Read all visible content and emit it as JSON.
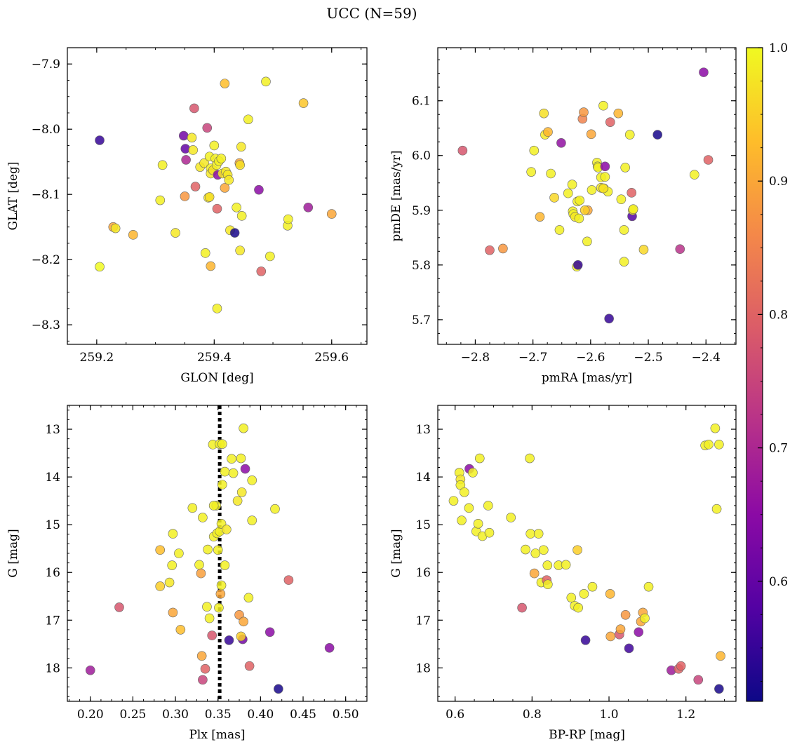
{
  "figure": {
    "title": "UCC (N=59)"
  },
  "colorbar": {
    "vmin": 0.51,
    "vmax": 1.0,
    "ticks": [
      0.6,
      0.7,
      0.8,
      0.9,
      1.0
    ],
    "tick_labels": [
      "0.6",
      "0.7",
      "0.8",
      "0.9",
      "1.0"
    ],
    "colormap": "plasma",
    "stops": [
      "#0d0887",
      "#5302a3",
      "#8b0aa5",
      "#b83289",
      "#db5c68",
      "#f48849",
      "#febd2a",
      "#f0f921"
    ]
  },
  "chart_data": [
    {
      "type": "scatter",
      "name": "sky",
      "xlabel": "GLON [deg]",
      "ylabel": "GLAT [deg]",
      "xlim": [
        259.15,
        259.66
      ],
      "ylim": [
        -8.33,
        -7.875
      ],
      "xticks": [
        259.2,
        259.4,
        259.6
      ],
      "xtick_labels": [
        "259.2",
        "259.4",
        "259.6"
      ],
      "yticks": [
        -7.9,
        -8.0,
        -8.1,
        -8.2,
        -8.3
      ],
      "ytick_labels": [
        "−7.9",
        "−8.0",
        "−8.1",
        "−8.2",
        "−8.3"
      ],
      "points": [
        [
          259.205,
          -8.017,
          0.55
        ],
        [
          259.205,
          -8.211,
          1.0
        ],
        [
          259.228,
          -8.15,
          0.9
        ],
        [
          259.232,
          -8.152,
          0.98
        ],
        [
          259.262,
          -8.162,
          0.92
        ],
        [
          259.308,
          -8.109,
          0.99
        ],
        [
          259.312,
          -8.055,
          0.99
        ],
        [
          259.334,
          -8.159,
          0.98
        ],
        [
          259.348,
          -8.01,
          0.62
        ],
        [
          259.35,
          -8.103,
          0.88
        ],
        [
          259.351,
          -8.03,
          0.6
        ],
        [
          259.352,
          -8.047,
          0.7
        ],
        [
          259.362,
          -8.013,
          0.98
        ],
        [
          259.364,
          -8.032,
          0.98
        ],
        [
          259.366,
          -7.968,
          0.78
        ],
        [
          259.368,
          -8.088,
          0.8
        ],
        [
          259.376,
          -8.058,
          0.98
        ],
        [
          259.383,
          -8.052,
          0.98
        ],
        [
          259.385,
          -8.19,
          0.99
        ],
        [
          259.388,
          -7.998,
          0.75
        ],
        [
          259.39,
          -8.105,
          0.98
        ],
        [
          259.392,
          -8.104,
          0.97
        ],
        [
          259.392,
          -8.042,
          0.99
        ],
        [
          259.394,
          -8.06,
          0.99
        ],
        [
          259.394,
          -8.068,
          0.98
        ],
        [
          259.394,
          -8.21,
          0.92
        ],
        [
          259.398,
          -8.063,
          0.97
        ],
        [
          259.4,
          -8.025,
          0.99
        ],
        [
          259.402,
          -8.045,
          0.99
        ],
        [
          259.404,
          -8.055,
          0.99
        ],
        [
          259.405,
          -8.275,
          0.99
        ],
        [
          259.405,
          -8.122,
          0.8
        ],
        [
          259.406,
          -8.07,
          0.65
        ],
        [
          259.408,
          -8.049,
          0.99
        ],
        [
          259.412,
          -8.045,
          0.99
        ],
        [
          259.414,
          -8.068,
          0.98
        ],
        [
          259.418,
          -7.93,
          0.93
        ],
        [
          259.418,
          -8.09,
          0.9
        ],
        [
          259.42,
          -8.065,
          0.98
        ],
        [
          259.423,
          -8.07,
          0.98
        ],
        [
          259.425,
          -8.078,
          0.98
        ],
        [
          259.427,
          -8.155,
          0.98
        ],
        [
          259.435,
          -8.159,
          0.52
        ],
        [
          259.438,
          -8.12,
          0.99
        ],
        [
          259.443,
          -8.052,
          0.9
        ],
        [
          259.444,
          -8.186,
          0.98
        ],
        [
          259.446,
          -8.027,
          0.98
        ],
        [
          259.447,
          -8.133,
          0.99
        ],
        [
          259.458,
          -7.985,
          0.99
        ],
        [
          259.476,
          -8.093,
          0.65
        ],
        [
          259.48,
          -8.218,
          0.8
        ],
        [
          259.488,
          -7.927,
          0.99
        ],
        [
          259.495,
          -8.195,
          0.99
        ],
        [
          259.525,
          -8.148,
          0.99
        ],
        [
          259.526,
          -8.138,
          0.99
        ],
        [
          259.552,
          -7.96,
          0.94
        ],
        [
          259.56,
          -8.12,
          0.68
        ],
        [
          259.6,
          -8.13,
          0.9
        ],
        [
          259.444,
          -8.055,
          0.97
        ]
      ]
    },
    {
      "type": "scatter",
      "name": "proper-motion",
      "xlabel": "pmRA [mas/yr]",
      "ylabel": "pmDE [mas/yr]",
      "xlim": [
        -2.865,
        -2.348
      ],
      "ylim": [
        5.655,
        6.197
      ],
      "xticks": [
        -2.8,
        -2.7,
        -2.6,
        -2.5,
        -2.4
      ],
      "xtick_labels": [
        "−2.8",
        "−2.7",
        "−2.6",
        "−2.5",
        "−2.4"
      ],
      "yticks": [
        5.7,
        5.8,
        5.9,
        6.0,
        6.1
      ],
      "ytick_labels": [
        "5.7",
        "5.8",
        "5.9",
        "6.0",
        "6.1"
      ],
      "points": [
        [
          -2.822,
          6.009,
          0.78
        ],
        [
          -2.775,
          5.827,
          0.8
        ],
        [
          -2.752,
          5.83,
          0.88
        ],
        [
          -2.703,
          5.97,
          0.99
        ],
        [
          -2.698,
          6.009,
          0.99
        ],
        [
          -2.688,
          5.888,
          0.92
        ],
        [
          -2.681,
          6.077,
          0.97
        ],
        [
          -2.679,
          6.038,
          0.98
        ],
        [
          -2.674,
          6.043,
          0.92
        ],
        [
          -2.669,
          5.967,
          0.99
        ],
        [
          -2.663,
          5.923,
          0.96
        ],
        [
          -2.654,
          5.864,
          0.99
        ],
        [
          -2.651,
          6.023,
          0.66
        ],
        [
          -2.639,
          5.931,
          0.99
        ],
        [
          -2.632,
          5.947,
          0.99
        ],
        [
          -2.631,
          5.898,
          0.99
        ],
        [
          -2.63,
          5.893,
          0.99
        ],
        [
          -2.627,
          5.888,
          0.98
        ],
        [
          -2.624,
          5.797,
          0.99
        ],
        [
          -2.623,
          5.916,
          0.99
        ],
        [
          -2.622,
          5.8,
          0.55
        ],
        [
          -2.62,
          5.885,
          0.99
        ],
        [
          -2.619,
          5.918,
          0.99
        ],
        [
          -2.614,
          6.067,
          0.85
        ],
        [
          -2.612,
          6.079,
          0.88
        ],
        [
          -2.606,
          5.843,
          0.99
        ],
        [
          -2.605,
          5.9,
          0.9
        ],
        [
          -2.599,
          6.039,
          0.9
        ],
        [
          -2.598,
          5.937,
          0.99
        ],
        [
          -2.589,
          5.987,
          0.99
        ],
        [
          -2.588,
          5.98,
          0.99
        ],
        [
          -2.587,
          5.978,
          0.99
        ],
        [
          -2.582,
          5.96,
          0.99
        ],
        [
          -2.582,
          5.941,
          0.98
        ],
        [
          -2.578,
          6.091,
          0.99
        ],
        [
          -2.577,
          5.94,
          0.99
        ],
        [
          -2.575,
          5.961,
          0.99
        ],
        [
          -2.575,
          5.98,
          0.65
        ],
        [
          -2.57,
          5.934,
          0.99
        ],
        [
          -2.568,
          5.702,
          0.55
        ],
        [
          -2.566,
          6.061,
          0.8
        ],
        [
          -2.552,
          6.077,
          0.92
        ],
        [
          -2.547,
          5.92,
          0.99
        ],
        [
          -2.542,
          5.864,
          0.99
        ],
        [
          -2.542,
          5.806,
          0.99
        ],
        [
          -2.54,
          5.978,
          0.99
        ],
        [
          -2.532,
          6.038,
          0.99
        ],
        [
          -2.529,
          5.932,
          0.8
        ],
        [
          -2.528,
          5.889,
          0.58
        ],
        [
          -2.527,
          5.9,
          0.98
        ],
        [
          -2.526,
          5.902,
          0.99
        ],
        [
          -2.508,
          5.828,
          0.96
        ],
        [
          -2.484,
          6.038,
          0.52
        ],
        [
          -2.445,
          5.829,
          0.72
        ],
        [
          -2.42,
          5.965,
          0.99
        ],
        [
          -2.404,
          6.152,
          0.65
        ],
        [
          -2.396,
          5.992,
          0.8
        ],
        [
          -2.578,
          5.94,
          0.97
        ],
        [
          -2.61,
          5.9,
          0.95
        ]
      ]
    },
    {
      "type": "scatter",
      "name": "parallax-cmd",
      "xlabel": "Plx [mas]",
      "ylabel": "G [mag]",
      "xlim": [
        0.173,
        0.525
      ],
      "ylim": [
        18.7,
        12.5
      ],
      "xticks": [
        0.2,
        0.25,
        0.3,
        0.35,
        0.4,
        0.45,
        0.5
      ],
      "xtick_labels": [
        "0.20",
        "0.25",
        "0.30",
        "0.35",
        "0.40",
        "0.45",
        "0.50"
      ],
      "yticks": [
        13,
        14,
        15,
        16,
        17,
        18
      ],
      "ytick_labels": [
        "13",
        "14",
        "15",
        "16",
        "17",
        "18"
      ],
      "vline": 0.352,
      "points": [
        [
          0.2,
          18.05,
          0.68
        ],
        [
          0.234,
          16.73,
          0.78
        ],
        [
          0.282,
          15.53,
          0.93
        ],
        [
          0.282,
          16.29,
          0.95
        ],
        [
          0.293,
          16.21,
          0.98
        ],
        [
          0.296,
          15.85,
          0.99
        ],
        [
          0.297,
          15.19,
          0.99
        ],
        [
          0.297,
          16.84,
          0.9
        ],
        [
          0.304,
          15.6,
          0.99
        ],
        [
          0.306,
          17.2,
          0.93
        ],
        [
          0.32,
          14.65,
          0.99
        ],
        [
          0.328,
          15.84,
          0.99
        ],
        [
          0.33,
          16.02,
          0.89
        ],
        [
          0.331,
          17.75,
          0.9
        ],
        [
          0.332,
          14.85,
          0.99
        ],
        [
          0.332,
          18.25,
          0.75
        ],
        [
          0.335,
          18.02,
          0.8
        ],
        [
          0.337,
          16.72,
          0.99
        ],
        [
          0.338,
          15.52,
          0.99
        ],
        [
          0.34,
          16.96,
          0.99
        ],
        [
          0.343,
          17.32,
          0.78
        ],
        [
          0.344,
          13.32,
          0.99
        ],
        [
          0.345,
          15.25,
          0.99
        ],
        [
          0.348,
          14.6,
          0.99
        ],
        [
          0.349,
          15.18,
          0.99
        ],
        [
          0.35,
          15.53,
          0.99
        ],
        [
          0.351,
          16.74,
          0.99
        ],
        [
          0.352,
          13.31,
          0.99
        ],
        [
          0.352,
          15.14,
          0.99
        ],
        [
          0.353,
          16.45,
          0.9
        ],
        [
          0.354,
          16.27,
          0.99
        ],
        [
          0.354,
          14.98,
          0.99
        ],
        [
          0.355,
          14.16,
          0.99
        ],
        [
          0.355,
          13.31,
          0.99
        ],
        [
          0.358,
          15.85,
          0.99
        ],
        [
          0.358,
          13.89,
          0.99
        ],
        [
          0.363,
          17.42,
          0.55
        ],
        [
          0.366,
          13.62,
          0.99
        ],
        [
          0.368,
          13.92,
          0.99
        ],
        [
          0.373,
          14.5,
          0.98
        ],
        [
          0.375,
          16.89,
          0.88
        ],
        [
          0.377,
          13.61,
          0.99
        ],
        [
          0.378,
          14.32,
          0.98
        ],
        [
          0.379,
          17.4,
          0.62
        ],
        [
          0.38,
          12.98,
          0.99
        ],
        [
          0.38,
          17.03,
          0.9
        ],
        [
          0.382,
          13.83,
          0.65
        ],
        [
          0.386,
          16.53,
          0.99
        ],
        [
          0.387,
          17.96,
          0.8
        ],
        [
          0.39,
          14.07,
          0.99
        ],
        [
          0.39,
          14.91,
          0.99
        ],
        [
          0.411,
          17.25,
          0.65
        ],
        [
          0.417,
          14.67,
          0.99
        ],
        [
          0.421,
          18.44,
          0.52
        ],
        [
          0.433,
          16.16,
          0.8
        ],
        [
          0.481,
          17.58,
          0.65
        ],
        [
          0.377,
          17.34,
          0.95
        ],
        [
          0.345,
          14.6,
          0.99
        ],
        [
          0.36,
          15.1,
          0.98
        ]
      ]
    },
    {
      "type": "scatter",
      "name": "color-magnitude",
      "xlabel": "BP-RP [mag]",
      "ylabel": "G [mag]",
      "xlim": [
        0.555,
        1.33
      ],
      "ylim": [
        18.7,
        12.5
      ],
      "xticks": [
        0.6,
        0.8,
        1.0,
        1.2
      ],
      "xtick_labels": [
        "0.6",
        "0.8",
        "1.0",
        "1.2"
      ],
      "yticks": [
        13,
        14,
        15,
        16,
        17,
        18
      ],
      "ytick_labels": [
        "13",
        "14",
        "15",
        "16",
        "17",
        "18"
      ],
      "points": [
        [
          0.596,
          14.5,
          0.99
        ],
        [
          0.611,
          13.91,
          0.99
        ],
        [
          0.614,
          14.05,
          0.98
        ],
        [
          0.614,
          14.17,
          0.99
        ],
        [
          0.617,
          14.91,
          0.99
        ],
        [
          0.624,
          14.32,
          0.99
        ],
        [
          0.636,
          14.65,
          0.99
        ],
        [
          0.637,
          13.83,
          0.65
        ],
        [
          0.646,
          13.91,
          0.99
        ],
        [
          0.655,
          15.14,
          0.99
        ],
        [
          0.66,
          14.98,
          0.99
        ],
        [
          0.664,
          13.61,
          0.99
        ],
        [
          0.671,
          15.24,
          0.99
        ],
        [
          0.686,
          14.6,
          0.99
        ],
        [
          0.689,
          15.17,
          0.99
        ],
        [
          0.745,
          14.85,
          0.99
        ],
        [
          0.774,
          16.74,
          0.78
        ],
        [
          0.783,
          15.52,
          0.99
        ],
        [
          0.794,
          13.61,
          0.99
        ],
        [
          0.796,
          15.19,
          0.99
        ],
        [
          0.806,
          16.02,
          0.9
        ],
        [
          0.809,
          15.6,
          0.99
        ],
        [
          0.817,
          15.19,
          0.99
        ],
        [
          0.824,
          16.21,
          0.99
        ],
        [
          0.83,
          15.53,
          0.99
        ],
        [
          0.838,
          16.16,
          0.8
        ],
        [
          0.84,
          15.85,
          0.99
        ],
        [
          0.841,
          16.25,
          0.99
        ],
        [
          0.869,
          15.85,
          0.99
        ],
        [
          0.888,
          15.84,
          0.99
        ],
        [
          0.902,
          16.53,
          0.99
        ],
        [
          0.911,
          16.7,
          0.99
        ],
        [
          0.918,
          15.53,
          0.95
        ],
        [
          0.92,
          16.74,
          0.99
        ],
        [
          0.939,
          17.42,
          0.55
        ],
        [
          0.957,
          16.3,
          0.99
        ],
        [
          1.003,
          16.45,
          0.92
        ],
        [
          1.004,
          17.34,
          0.9
        ],
        [
          1.027,
          17.3,
          0.78
        ],
        [
          1.03,
          17.19,
          0.9
        ],
        [
          1.043,
          16.89,
          0.88
        ],
        [
          1.052,
          17.59,
          0.56
        ],
        [
          1.077,
          17.25,
          0.65
        ],
        [
          1.083,
          17.03,
          0.9
        ],
        [
          1.088,
          16.84,
          0.9
        ],
        [
          1.093,
          16.96,
          0.99
        ],
        [
          1.103,
          16.3,
          0.99
        ],
        [
          1.162,
          18.05,
          0.68
        ],
        [
          1.181,
          18.02,
          0.8
        ],
        [
          1.187,
          17.96,
          0.8
        ],
        [
          1.232,
          18.25,
          0.75
        ],
        [
          1.25,
          13.34,
          0.99
        ],
        [
          1.259,
          13.32,
          0.99
        ],
        [
          1.276,
          12.98,
          0.99
        ],
        [
          1.28,
          14.67,
          0.99
        ],
        [
          1.286,
          13.32,
          0.99
        ],
        [
          1.286,
          18.44,
          0.52
        ],
        [
          1.29,
          17.75,
          0.92
        ],
        [
          0.935,
          16.45,
          0.99
        ]
      ]
    }
  ]
}
